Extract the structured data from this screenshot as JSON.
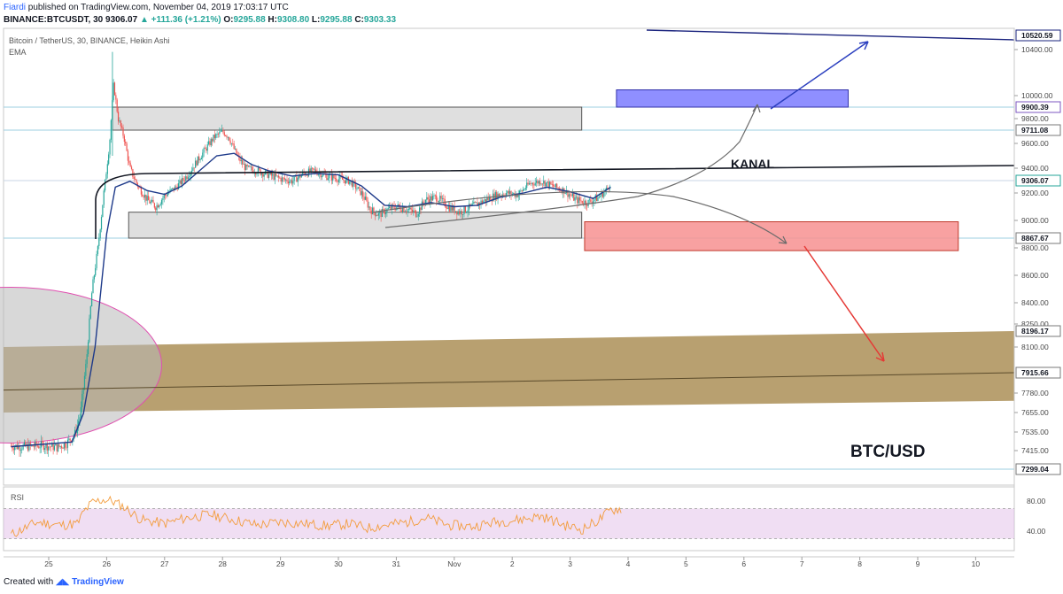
{
  "header": {
    "author": "Fiardi",
    "published": "published on TradingView.com, November 04, 2019 17:03:17 UTC",
    "symbol": "BINANCE:BTCUSDT, 30",
    "last": "9306.07",
    "change": "▲ +111.36 (+1.21%)",
    "o_label": "O:",
    "o": "9295.88",
    "h_label": "H:",
    "h": "9308.80",
    "l_label": "L:",
    "l": "9295.88",
    "c_label": "C:",
    "c": "9303.33"
  },
  "legend": {
    "title": "Bitcoin / TetherUS, 30, BINANCE, Heikin Ashi",
    "indicator": "EMA"
  },
  "annotations": {
    "kanal": "KANAL",
    "pair": "BTC/USD"
  },
  "rsi": {
    "label": "RSI",
    "ticks": [
      "80.00",
      "40.00"
    ]
  },
  "footer": {
    "created": "Created with",
    "brand": "TradingView"
  },
  "chart_data": {
    "type": "candlestick",
    "title": "Bitcoin / TetherUS, 30, BINANCE, Heikin Ashi",
    "y_ticks": [
      "10400.00",
      "10000.00",
      "9800.00",
      "9600.00",
      "9400.00",
      "9200.00",
      "9000.00",
      "8800.00",
      "8600.00",
      "8400.00",
      "8250.00",
      "8100.00",
      "7780.00",
      "7655.00",
      "7535.00",
      "7415.00"
    ],
    "price_tags": [
      {
        "label": "10520.59",
        "color": "#1a237e"
      },
      {
        "label": "9900.39",
        "color": "#7e57c2"
      },
      {
        "label": "9711.08",
        "color": "#7a7a7a"
      },
      {
        "label": "9306.07",
        "color": "#26a69a"
      },
      {
        "label": "8867.67",
        "color": "#7a7a7a"
      },
      {
        "label": "8196.17",
        "color": "#7a7a7a"
      },
      {
        "label": "7915.66",
        "color": "#7a7a7a"
      },
      {
        "label": "7299.04",
        "color": "#7a7a7a"
      }
    ],
    "x_ticks": [
      "25",
      "26",
      "27",
      "28",
      "29",
      "30",
      "31",
      "Nov",
      "2",
      "3",
      "4",
      "5",
      "6",
      "7",
      "8",
      "9",
      "10"
    ],
    "price_path": [
      [
        24.35,
        7445
      ],
      [
        24.6,
        7440
      ],
      [
        24.9,
        7450
      ],
      [
        25.15,
        7435
      ],
      [
        25.3,
        7460
      ],
      [
        25.45,
        7520
      ],
      [
        25.55,
        7650
      ],
      [
        25.65,
        8000
      ],
      [
        25.75,
        8500
      ],
      [
        25.85,
        8800
      ],
      [
        25.95,
        9200
      ],
      [
        26.05,
        9600
      ],
      [
        26.12,
        10100
      ],
      [
        26.2,
        9800
      ],
      [
        26.3,
        9650
      ],
      [
        26.4,
        9400
      ],
      [
        26.55,
        9250
      ],
      [
        26.7,
        9150
      ],
      [
        26.85,
        9100
      ],
      [
        27.0,
        9180
      ],
      [
        27.2,
        9250
      ],
      [
        27.4,
        9350
      ],
      [
        27.55,
        9450
      ],
      [
        27.7,
        9550
      ],
      [
        27.85,
        9650
      ],
      [
        28.0,
        9700
      ],
      [
        28.1,
        9660
      ],
      [
        28.25,
        9500
      ],
      [
        28.4,
        9400
      ],
      [
        28.6,
        9380
      ],
      [
        28.8,
        9350
      ],
      [
        29.0,
        9320
      ],
      [
        29.2,
        9300
      ],
      [
        29.4,
        9360
      ],
      [
        29.6,
        9380
      ],
      [
        29.8,
        9340
      ],
      [
        30.0,
        9320
      ],
      [
        30.2,
        9300
      ],
      [
        30.4,
        9200
      ],
      [
        30.55,
        9080
      ],
      [
        30.7,
        9040
      ],
      [
        30.85,
        9080
      ],
      [
        31.0,
        9100
      ],
      [
        31.2,
        9080
      ],
      [
        31.35,
        9050
      ],
      [
        31.5,
        9150
      ],
      [
        31.7,
        9170
      ],
      [
        31.9,
        9100
      ],
      [
        32.1,
        9060
      ],
      [
        32.3,
        9100
      ],
      [
        32.5,
        9140
      ],
      [
        32.7,
        9180
      ],
      [
        32.9,
        9200
      ],
      [
        33.1,
        9190
      ],
      [
        33.3,
        9280
      ],
      [
        33.5,
        9300
      ],
      [
        33.7,
        9260
      ],
      [
        33.9,
        9220
      ],
      [
        34.1,
        9150
      ],
      [
        34.3,
        9130
      ],
      [
        34.5,
        9170
      ],
      [
        34.65,
        9240
      ],
      [
        34.7,
        9300
      ]
    ],
    "ema_path": [
      [
        24.35,
        7440
      ],
      [
        25.4,
        7470
      ],
      [
        25.6,
        7650
      ],
      [
        25.8,
        8100
      ],
      [
        26.0,
        8900
      ],
      [
        26.15,
        9250
      ],
      [
        26.4,
        9300
      ],
      [
        26.7,
        9220
      ],
      [
        27.0,
        9190
      ],
      [
        27.3,
        9260
      ],
      [
        27.6,
        9380
      ],
      [
        27.9,
        9500
      ],
      [
        28.2,
        9520
      ],
      [
        28.5,
        9430
      ],
      [
        28.8,
        9380
      ],
      [
        29.2,
        9340
      ],
      [
        29.6,
        9360
      ],
      [
        30.0,
        9350
      ],
      [
        30.4,
        9260
      ],
      [
        30.8,
        9110
      ],
      [
        31.2,
        9100
      ],
      [
        31.6,
        9130
      ],
      [
        32.0,
        9100
      ],
      [
        32.4,
        9110
      ],
      [
        32.8,
        9170
      ],
      [
        33.2,
        9200
      ],
      [
        33.6,
        9250
      ],
      [
        34.0,
        9210
      ],
      [
        34.4,
        9160
      ],
      [
        34.7,
        9250
      ]
    ],
    "zones": [
      {
        "name": "upper-resistance-zone",
        "x": [
          26.1,
          34.2
        ],
        "y": [
          9711.08,
          9900.39
        ],
        "fill": "#d9d9d9",
        "stroke": "#555555"
      },
      {
        "name": "lower-support-zone",
        "x": [
          26.38,
          34.2
        ],
        "y": [
          8867.67,
          9060
        ],
        "fill": "#d9d9d9",
        "stroke": "#555555"
      },
      {
        "name": "target-blue-zone",
        "x": [
          34.8,
          38.8
        ],
        "y": [
          9900.39,
          10050
        ],
        "fill": "#7b7bff",
        "stroke": "#3333aa"
      },
      {
        "name": "target-red-zone",
        "x": [
          34.25,
          40.7
        ],
        "y": [
          8780,
          8990
        ],
        "fill": "#f79090",
        "stroke": "#c0392b"
      }
    ],
    "channel_band": {
      "top_left": 8100,
      "top_right": 8196.17,
      "bottom_left": 7655,
      "bottom_right": 7730,
      "fill": "#a08040"
    },
    "mid_line": {
      "left": 7800,
      "right": 7915.66
    },
    "rsi_series": [
      [
        24.35,
        35
      ],
      [
        24.8,
        52
      ],
      [
        25.2,
        48
      ],
      [
        25.5,
        50
      ],
      [
        25.6,
        65
      ],
      [
        25.75,
        78
      ],
      [
        25.95,
        82
      ],
      [
        26.1,
        80
      ],
      [
        26.3,
        72
      ],
      [
        26.6,
        55
      ],
      [
        27.0,
        50
      ],
      [
        27.4,
        58
      ],
      [
        27.8,
        62
      ],
      [
        28.2,
        55
      ],
      [
        28.6,
        48
      ],
      [
        29.0,
        52
      ],
      [
        29.4,
        50
      ],
      [
        29.8,
        47
      ],
      [
        30.2,
        50
      ],
      [
        30.5,
        44
      ],
      [
        30.8,
        48
      ],
      [
        31.2,
        52
      ],
      [
        31.5,
        58
      ],
      [
        31.9,
        48
      ],
      [
        32.3,
        46
      ],
      [
        32.7,
        52
      ],
      [
        33.1,
        55
      ],
      [
        33.5,
        60
      ],
      [
        33.9,
        48
      ],
      [
        34.2,
        42
      ],
      [
        34.5,
        55
      ],
      [
        34.7,
        68
      ],
      [
        34.9,
        70
      ]
    ]
  }
}
